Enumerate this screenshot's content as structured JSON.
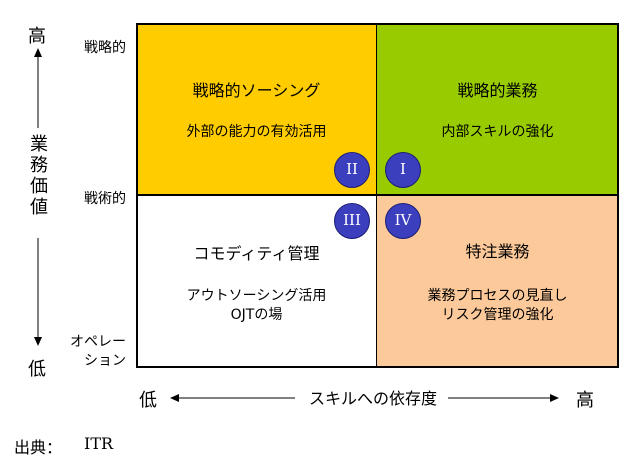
{
  "quadrants": {
    "top_left": {
      "title": "戦略的ソーシング",
      "subtitle": "外部の能力の有効活用"
    },
    "top_right": {
      "title": "戦略的業務",
      "subtitle": "内部スキルの強化"
    },
    "bottom_left": {
      "title": "コモディティ管理",
      "subtitle_line1": "アウトソーシング活用",
      "subtitle_line2": "OJTの場"
    },
    "bottom_right": {
      "title": "特注業務",
      "subtitle_line1": "業務プロセスの見直し",
      "subtitle_line2": "リスク管理の強化"
    }
  },
  "markers": {
    "I": "I",
    "II": "II",
    "III": "III",
    "IV": "IV"
  },
  "y_axis": {
    "title": "業務価値",
    "high": "高",
    "low": "低",
    "levels": {
      "strategic": "戦略的",
      "tactical": "戦術的",
      "operation_line1": "オペレー",
      "operation_line2": "ション"
    }
  },
  "x_axis": {
    "title": "スキルへの依存度",
    "low": "低",
    "high": "高"
  },
  "source": {
    "label": "出典：",
    "value": "ITR"
  }
}
